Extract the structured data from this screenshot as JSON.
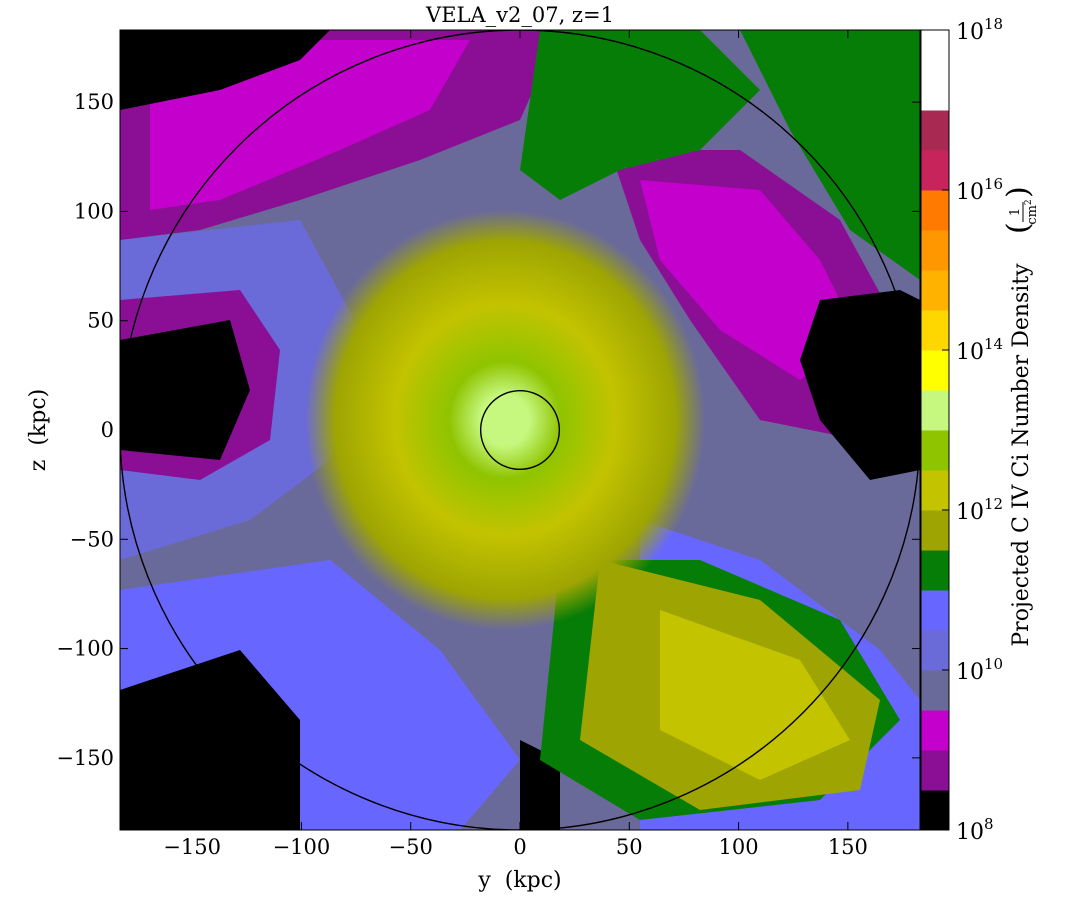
{
  "chart_data": {
    "type": "heatmap",
    "title": "VELA_v2_07, z=1",
    "xlabel": "y  (kpc)",
    "ylabel": "z  (kpc)",
    "xlim": [
      -183,
      183
    ],
    "ylim": [
      -183,
      183
    ],
    "x_ticks": [
      {
        "value": -150,
        "label": "−150"
      },
      {
        "value": -100,
        "label": "−100"
      },
      {
        "value": -50,
        "label": "−50"
      },
      {
        "value": 0,
        "label": "0"
      },
      {
        "value": 50,
        "label": "50"
      },
      {
        "value": 100,
        "label": "100"
      },
      {
        "value": 150,
        "label": "150"
      }
    ],
    "y_ticks": [
      {
        "value": 150,
        "label": "150"
      },
      {
        "value": 100,
        "label": "100"
      },
      {
        "value": 50,
        "label": "50"
      },
      {
        "value": 0,
        "label": "0"
      },
      {
        "value": -50,
        "label": "−50"
      },
      {
        "value": -100,
        "label": "−100"
      },
      {
        "value": -150,
        "label": "−150"
      }
    ],
    "circles": [
      {
        "name": "outer",
        "cx": 0,
        "cy": 0,
        "r": 183
      },
      {
        "name": "inner",
        "cx": 0,
        "cy": 0,
        "r": 18
      }
    ],
    "colorbar": {
      "label": "Projected C IV Ci Number Density",
      "unit_numerator": "1",
      "unit_denominator": "cm",
      "unit_denominator_exp": "2",
      "scale": "log",
      "range_exp": [
        8,
        18
      ],
      "tick_labels": [
        {
          "base": "10",
          "exp": "8",
          "value_exp": 8
        },
        {
          "base": "10",
          "exp": "10",
          "value_exp": 10
        },
        {
          "base": "10",
          "exp": "12",
          "value_exp": 12
        },
        {
          "base": "10",
          "exp": "14",
          "value_exp": 14
        },
        {
          "base": "10",
          "exp": "16",
          "value_exp": 16
        },
        {
          "base": "10",
          "exp": "18",
          "value_exp": 18
        }
      ],
      "levels": [
        {
          "from": 8.0,
          "to": 8.5,
          "color": "#000000"
        },
        {
          "from": 8.5,
          "to": 9.0,
          "color": "#8b0f94"
        },
        {
          "from": 9.0,
          "to": 9.5,
          "color": "#c400cc"
        },
        {
          "from": 9.5,
          "to": 10.0,
          "color": "#6a6a9a"
        },
        {
          "from": 10.0,
          "to": 10.5,
          "color": "#6a6ad8"
        },
        {
          "from": 10.5,
          "to": 11.0,
          "color": "#6767ff"
        },
        {
          "from": 11.0,
          "to": 11.5,
          "color": "#067d06"
        },
        {
          "from": 11.5,
          "to": 12.0,
          "color": "#9ea502"
        },
        {
          "from": 12.0,
          "to": 12.5,
          "color": "#c3c300"
        },
        {
          "from": 12.5,
          "to": 13.0,
          "color": "#8fc400"
        },
        {
          "from": 13.0,
          "to": 13.5,
          "color": "#c6f880"
        },
        {
          "from": 13.5,
          "to": 14.0,
          "color": "#ffff00"
        },
        {
          "from": 14.0,
          "to": 14.5,
          "color": "#ffd700"
        },
        {
          "from": 14.5,
          "to": 15.0,
          "color": "#ffb200"
        },
        {
          "from": 15.0,
          "to": 15.5,
          "color": "#ff9700"
        },
        {
          "from": 15.5,
          "to": 16.0,
          "color": "#ff7a00"
        },
        {
          "from": 16.0,
          "to": 16.5,
          "color": "#c8245c"
        },
        {
          "from": 16.5,
          "to": 17.0,
          "color": "#a82a52"
        },
        {
          "from": 17.0,
          "to": 17.5,
          "color": "#ffffff"
        }
      ]
    }
  }
}
